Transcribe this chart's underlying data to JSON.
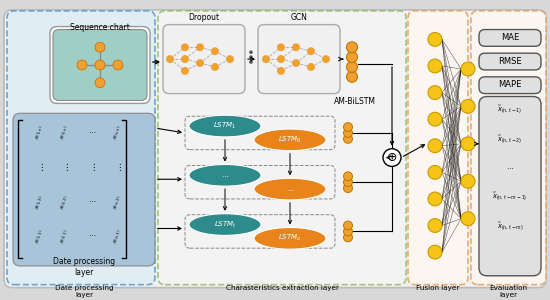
{
  "bg_color": "#d8d8d8",
  "teal_color": "#2e8b8b",
  "orange_color": "#e8841a",
  "yellow_color": "#f5c518",
  "node_orange": "#f0a030",
  "light_teal_bg": "#a8c8c0",
  "light_blue_bg": "#a8c4d8",
  "graph_bg_white": "#f0f0f0",
  "dashed_green": "#7ab648",
  "dashed_blue": "#5599cc",
  "dashed_orange": "#e8a060",
  "seq_label": "Sequence chart",
  "dropout_label": "Dropout",
  "gcn_label": "GCN",
  "am_bilstm_label": "AM-BiLSTM",
  "date_layer_label": "Date processing\nlayer",
  "char_layer_label": "Charasteristics extraction layer",
  "fusion_layer_label": "Fusion layer",
  "eval_layer_label": "Evaluation\nlayer",
  "eval_metrics": [
    "MAE",
    "RMSE",
    "MAPE"
  ],
  "lstm_labels": [
    "$LSTM_1$",
    "$LSTM_R$",
    "$\\cdots$",
    "$\\cdots$",
    "$LSTM_t$",
    "$LSTM_o$"
  ]
}
